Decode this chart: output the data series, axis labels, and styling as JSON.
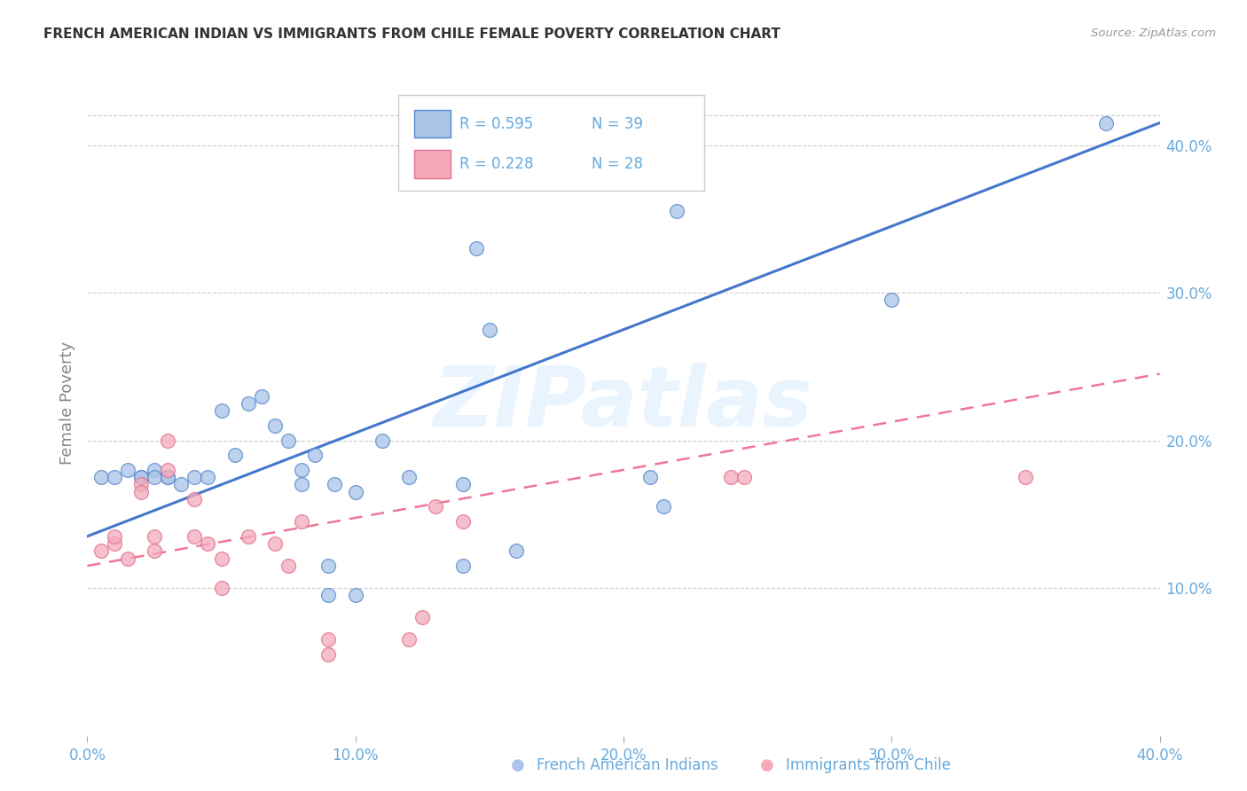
{
  "title": "FRENCH AMERICAN INDIAN VS IMMIGRANTS FROM CHILE FEMALE POVERTY CORRELATION CHART",
  "source": "Source: ZipAtlas.com",
  "ylabel": "Female Poverty",
  "xlim": [
    0.0,
    0.4
  ],
  "ylim": [
    0.0,
    0.45
  ],
  "xtick_labels": [
    "0.0%",
    "10.0%",
    "20.0%",
    "30.0%",
    "40.0%"
  ],
  "xtick_vals": [
    0.0,
    0.1,
    0.2,
    0.3,
    0.4
  ],
  "ytick_labels": [
    "10.0%",
    "20.0%",
    "30.0%",
    "40.0%"
  ],
  "ytick_vals": [
    0.1,
    0.2,
    0.3,
    0.4
  ],
  "legend_label1": "French American Indians",
  "legend_label2": "Immigrants from Chile",
  "legend_R1": "R = 0.595",
  "legend_N1": "N = 39",
  "legend_R2": "R = 0.228",
  "legend_N2": "N = 28",
  "color_blue_fill": "#AAC4E8",
  "color_blue_edge": "#5588CC",
  "color_pink_fill": "#F4AABB",
  "color_pink_edge": "#E07090",
  "color_blue_line": "#4477CC",
  "color_pink_line": "#EE7799",
  "color_axis_ticks": "#66AADD",
  "color_grid": "#CCCCCC",
  "color_title": "#333333",
  "watermark_text": "ZIPatlas",
  "blue_x": [
    0.38,
    0.005,
    0.01,
    0.015,
    0.02,
    0.02,
    0.025,
    0.025,
    0.03,
    0.03,
    0.035,
    0.04,
    0.045,
    0.05,
    0.055,
    0.06,
    0.065,
    0.07,
    0.075,
    0.08,
    0.08,
    0.085,
    0.09,
    0.09,
    0.092,
    0.1,
    0.1,
    0.11,
    0.12,
    0.14,
    0.14,
    0.145,
    0.15,
    0.16,
    0.21,
    0.215,
    0.22,
    0.3,
    0.38
  ],
  "blue_y": [
    0.415,
    0.175,
    0.175,
    0.18,
    0.175,
    0.175,
    0.18,
    0.175,
    0.175,
    0.175,
    0.17,
    0.175,
    0.175,
    0.22,
    0.19,
    0.225,
    0.23,
    0.21,
    0.2,
    0.18,
    0.17,
    0.19,
    0.115,
    0.095,
    0.17,
    0.095,
    0.165,
    0.2,
    0.175,
    0.115,
    0.17,
    0.33,
    0.275,
    0.125,
    0.175,
    0.155,
    0.355,
    0.295,
    0.415
  ],
  "pink_x": [
    0.005,
    0.01,
    0.01,
    0.015,
    0.02,
    0.02,
    0.025,
    0.025,
    0.03,
    0.03,
    0.04,
    0.04,
    0.045,
    0.05,
    0.05,
    0.06,
    0.07,
    0.075,
    0.08,
    0.09,
    0.09,
    0.12,
    0.125,
    0.13,
    0.14,
    0.24,
    0.245,
    0.35
  ],
  "pink_y": [
    0.125,
    0.13,
    0.135,
    0.12,
    0.17,
    0.165,
    0.135,
    0.125,
    0.18,
    0.2,
    0.16,
    0.135,
    0.13,
    0.12,
    0.1,
    0.135,
    0.13,
    0.115,
    0.145,
    0.055,
    0.065,
    0.065,
    0.08,
    0.155,
    0.145,
    0.175,
    0.175,
    0.175
  ],
  "blue_line_x": [
    0.0,
    0.4
  ],
  "blue_line_y": [
    0.135,
    0.415
  ],
  "pink_line_x": [
    0.0,
    0.4
  ],
  "pink_line_y": [
    0.115,
    0.245
  ]
}
